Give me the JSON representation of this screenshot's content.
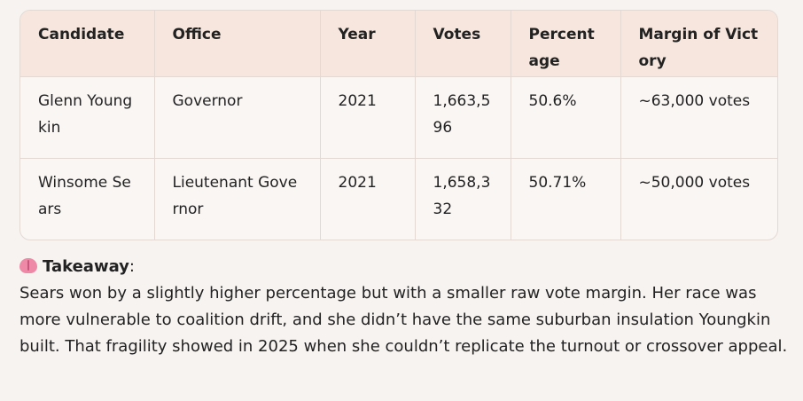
{
  "table": {
    "headers": [
      "Candidate",
      "Office",
      "Year",
      "Votes",
      "Percentage",
      "Margin of Victory"
    ],
    "rows": [
      [
        "Glenn Youngkin",
        "Governor",
        "2021",
        "1,663,596",
        "50.6%",
        "~63,000 votes"
      ],
      [
        "Winsome Sears",
        "Lieutenant Governor",
        "2021",
        "1,658,332",
        "50.71%",
        "~50,000 votes"
      ]
    ]
  },
  "takeaway": {
    "icon": "brain-icon",
    "title": "Takeaway",
    "colon": ":",
    "text": "Sears won by a slightly higher percentage but with a smaller raw vote margin. Her race was more vulnerable to coalition drift, and she didn’t have the same suburban insulation Youngkin built. That fragility showed in 2025 when she couldn’t replicate the turnout or crossover appeal."
  }
}
